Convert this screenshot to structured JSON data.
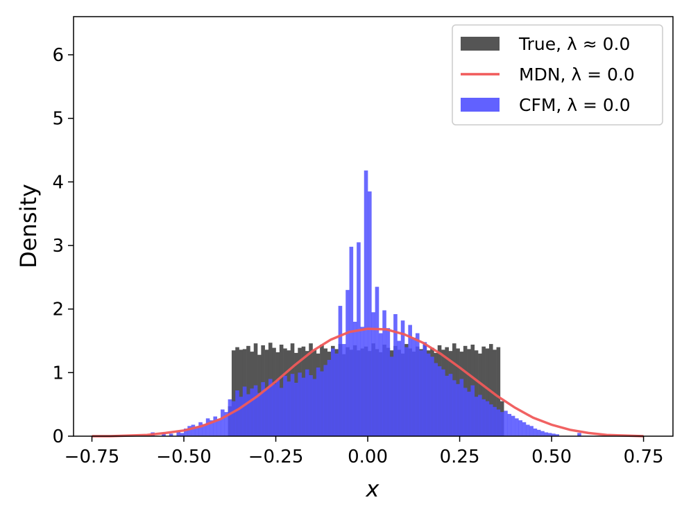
{
  "chart_data": {
    "type": "histogram",
    "xlabel": "x",
    "ylabel": "Density",
    "xlim": [
      -0.8,
      0.83
    ],
    "ylim": [
      0,
      6.6
    ],
    "xticks": [
      -0.75,
      -0.5,
      -0.25,
      0.0,
      0.25,
      0.5,
      0.75
    ],
    "xtick_labels": [
      "−0.75",
      "−0.50",
      "−0.25",
      "0.00",
      "0.25",
      "0.50",
      "0.75"
    ],
    "yticks": [
      0,
      1,
      2,
      3,
      4,
      5,
      6
    ],
    "ytick_labels": [
      "0",
      "1",
      "2",
      "3",
      "4",
      "5",
      "6"
    ],
    "grid": false,
    "legend_position": "top-right",
    "legend": [
      {
        "label": "True, λ ≈ 0.0",
        "kind": "patch",
        "color": "#555555"
      },
      {
        "label": "MDN, λ = 0.0",
        "kind": "line",
        "color": "#f05a5a"
      },
      {
        "label": "CFM, λ = 0.0",
        "kind": "patch",
        "color": "#5050ff"
      }
    ],
    "series": [
      {
        "name": "True, λ ≈ 0.0",
        "kind": "histogram",
        "color": "#555555",
        "bin_width": 0.01,
        "bin_starts": [
          -0.38,
          -0.37,
          -0.36,
          -0.35,
          -0.34,
          -0.33,
          -0.32,
          -0.31,
          -0.3,
          -0.29,
          -0.28,
          -0.27,
          -0.26,
          -0.25,
          -0.24,
          -0.23,
          -0.22,
          -0.21,
          -0.2,
          -0.19,
          -0.18,
          -0.17,
          -0.16,
          -0.15,
          -0.14,
          -0.13,
          -0.12,
          -0.11,
          -0.1,
          -0.09,
          -0.08,
          -0.07,
          -0.06,
          -0.05,
          -0.04,
          -0.03,
          -0.02,
          -0.01,
          0.0,
          0.01,
          0.02,
          0.03,
          0.04,
          0.05,
          0.06,
          0.07,
          0.08,
          0.09,
          0.1,
          0.11,
          0.12,
          0.13,
          0.14,
          0.15,
          0.16,
          0.17,
          0.18,
          0.19,
          0.2,
          0.21,
          0.22,
          0.23,
          0.24,
          0.25,
          0.26,
          0.27,
          0.28,
          0.29,
          0.3,
          0.31,
          0.32,
          0.33,
          0.34,
          0.35,
          0.36
        ],
        "values": [
          0.47,
          1.35,
          1.4,
          1.36,
          1.37,
          1.42,
          1.33,
          1.46,
          1.28,
          1.43,
          1.36,
          1.47,
          1.39,
          1.32,
          1.44,
          1.38,
          1.35,
          1.46,
          1.31,
          1.39,
          1.41,
          1.34,
          1.46,
          1.36,
          1.3,
          1.44,
          1.38,
          1.33,
          1.42,
          1.37,
          1.45,
          1.29,
          1.4,
          1.36,
          1.43,
          1.35,
          1.38,
          1.41,
          1.34,
          1.46,
          1.37,
          1.32,
          1.44,
          1.39,
          1.35,
          1.42,
          1.36,
          1.3,
          1.45,
          1.38,
          1.33,
          1.41,
          1.37,
          1.44,
          1.35,
          1.39,
          1.31,
          1.43,
          1.36,
          1.4,
          1.34,
          1.46,
          1.38,
          1.33,
          1.42,
          1.37,
          1.44,
          1.35,
          1.3,
          1.41,
          1.38,
          1.45,
          1.36,
          1.4,
          0.55
        ]
      },
      {
        "name": "CFM, λ = 0.0",
        "kind": "histogram",
        "color": "#5050ff",
        "bin_width": 0.01,
        "bin_starts": [
          -0.59,
          -0.58,
          -0.57,
          -0.56,
          -0.55,
          -0.54,
          -0.53,
          -0.52,
          -0.51,
          -0.5,
          -0.49,
          -0.48,
          -0.47,
          -0.46,
          -0.45,
          -0.44,
          -0.43,
          -0.42,
          -0.41,
          -0.4,
          -0.39,
          -0.38,
          -0.37,
          -0.36,
          -0.35,
          -0.34,
          -0.33,
          -0.32,
          -0.31,
          -0.3,
          -0.29,
          -0.28,
          -0.27,
          -0.26,
          -0.25,
          -0.24,
          -0.23,
          -0.22,
          -0.21,
          -0.2,
          -0.19,
          -0.18,
          -0.17,
          -0.16,
          -0.15,
          -0.14,
          -0.13,
          -0.12,
          -0.11,
          -0.1,
          -0.09,
          -0.08,
          -0.07,
          -0.06,
          -0.05,
          -0.04,
          -0.03,
          -0.02,
          -0.01,
          0.0,
          0.01,
          0.02,
          0.03,
          0.04,
          0.05,
          0.06,
          0.07,
          0.08,
          0.09,
          0.1,
          0.11,
          0.12,
          0.13,
          0.14,
          0.15,
          0.16,
          0.17,
          0.18,
          0.19,
          0.2,
          0.21,
          0.22,
          0.23,
          0.24,
          0.25,
          0.26,
          0.27,
          0.28,
          0.29,
          0.3,
          0.31,
          0.32,
          0.33,
          0.34,
          0.35,
          0.36,
          0.37,
          0.38,
          0.39,
          0.4,
          0.41,
          0.42,
          0.43,
          0.44,
          0.45,
          0.46,
          0.47,
          0.48,
          0.49,
          0.5,
          0.51,
          0.52,
          0.53,
          0.54,
          0.55,
          0.56,
          0.57
        ],
        "values": [
          0.06,
          0.0,
          0.0,
          0.05,
          0.0,
          0.04,
          0.0,
          0.07,
          0.05,
          0.12,
          0.16,
          0.18,
          0.15,
          0.22,
          0.19,
          0.28,
          0.25,
          0.31,
          0.27,
          0.42,
          0.38,
          0.58,
          0.55,
          0.72,
          0.62,
          0.78,
          0.66,
          0.75,
          0.8,
          0.68,
          0.85,
          0.74,
          0.9,
          0.82,
          0.88,
          0.76,
          0.95,
          0.86,
          0.98,
          0.84,
          1.0,
          0.92,
          1.05,
          0.96,
          0.9,
          1.08,
          1.02,
          1.12,
          1.2,
          1.38,
          1.3,
          2.05,
          1.45,
          2.3,
          2.98,
          1.8,
          3.05,
          1.72,
          4.18,
          3.85,
          1.95,
          2.35,
          1.62,
          1.98,
          1.7,
          1.25,
          1.92,
          1.5,
          1.82,
          1.4,
          1.75,
          1.55,
          1.62,
          1.35,
          1.48,
          1.3,
          1.25,
          1.15,
          1.1,
          1.05,
          0.95,
          0.98,
          0.88,
          0.82,
          0.9,
          0.76,
          0.7,
          0.8,
          0.62,
          0.65,
          0.58,
          0.55,
          0.5,
          0.46,
          0.42,
          0.38,
          0.4,
          0.35,
          0.32,
          0.28,
          0.25,
          0.22,
          0.18,
          0.16,
          0.12,
          0.1,
          0.08,
          0.06,
          0.05,
          0.04,
          0.03,
          0.0,
          0.0,
          0.0,
          0.0,
          0.0,
          0.05,
          0.0
        ]
      },
      {
        "name": "MDN, λ = 0.0",
        "kind": "line",
        "color": "#f05a5a",
        "x": [
          -0.75,
          -0.7,
          -0.65,
          -0.6,
          -0.55,
          -0.5,
          -0.45,
          -0.4,
          -0.35,
          -0.3,
          -0.25,
          -0.2,
          -0.15,
          -0.1,
          -0.05,
          0.0,
          0.05,
          0.1,
          0.15,
          0.2,
          0.25,
          0.3,
          0.35,
          0.4,
          0.45,
          0.5,
          0.55,
          0.6,
          0.65,
          0.7,
          0.75
        ],
        "y": [
          0.0,
          0.0,
          0.01,
          0.02,
          0.05,
          0.09,
          0.16,
          0.27,
          0.43,
          0.63,
          0.86,
          1.11,
          1.34,
          1.52,
          1.64,
          1.69,
          1.68,
          1.6,
          1.47,
          1.29,
          1.08,
          0.86,
          0.64,
          0.45,
          0.29,
          0.18,
          0.1,
          0.05,
          0.02,
          0.01,
          0.0
        ]
      }
    ]
  }
}
